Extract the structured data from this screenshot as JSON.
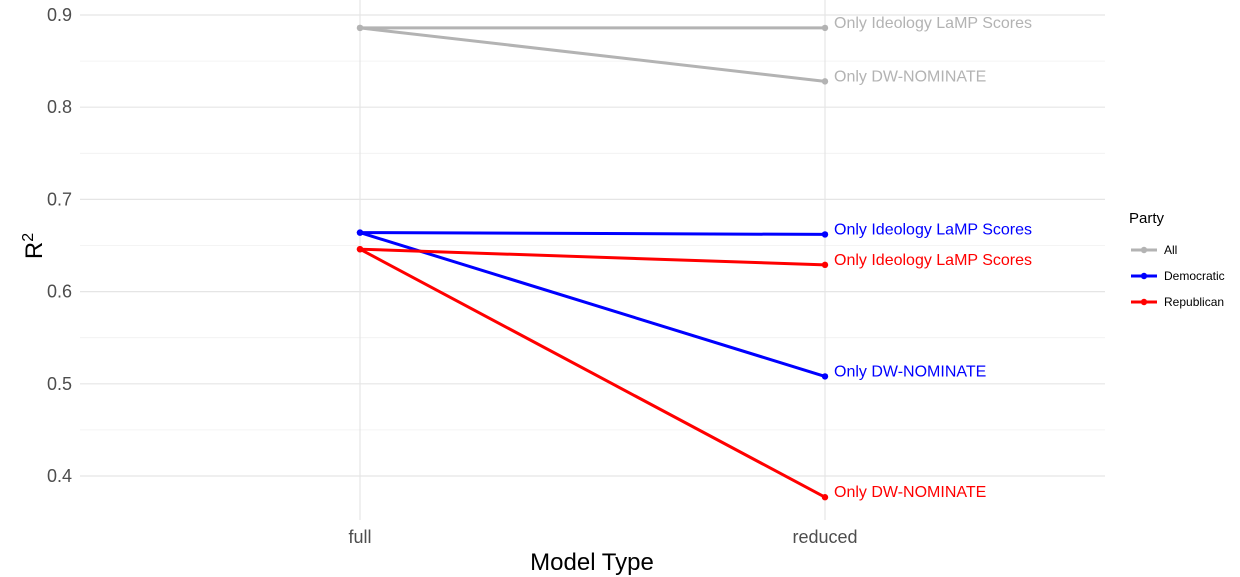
{
  "chart_data": {
    "type": "line",
    "title": "",
    "xlabel": "Model Type",
    "ylabel": "R",
    "ylabel_superscript": "2",
    "categories": [
      "full",
      "reduced"
    ],
    "ylim": [
      0.37,
      0.91
    ],
    "yticks": [
      "0.4",
      "0.5",
      "0.6",
      "0.7",
      "0.8",
      "0.9"
    ],
    "grid": true,
    "legend": {
      "title": "Party",
      "placement": "right",
      "entries": [
        {
          "name": "All",
          "color": "#b3b3b3"
        },
        {
          "name": "Democratic",
          "color": "#0000ff"
        },
        {
          "name": "Republican",
          "color": "#ff0000"
        }
      ]
    },
    "series": [
      {
        "party": "All",
        "label": "Only Ideology LaMP Scores",
        "values": [
          0.886,
          0.886
        ]
      },
      {
        "party": "All",
        "label": "Only DW-NOMINATE",
        "values": [
          0.886,
          0.828
        ]
      },
      {
        "party": "Democratic",
        "label": "Only Ideology LaMP Scores",
        "values": [
          0.664,
          0.662
        ]
      },
      {
        "party": "Democratic",
        "label": "Only DW-NOMINATE",
        "values": [
          0.664,
          0.508
        ]
      },
      {
        "party": "Republican",
        "label": "Only Ideology LaMP Scores",
        "values": [
          0.646,
          0.629
        ]
      },
      {
        "party": "Republican",
        "label": "Only DW-NOMINATE",
        "values": [
          0.646,
          0.377
        ]
      }
    ]
  }
}
